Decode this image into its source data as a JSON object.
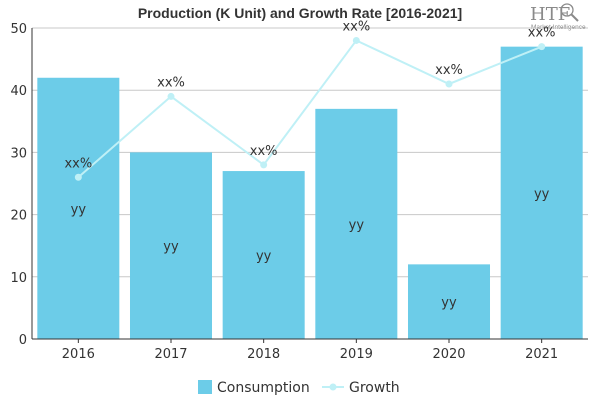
{
  "chart_data": {
    "type": "bar",
    "title": "Production (K Unit) and Growth Rate [2016-2021]",
    "categories": [
      "2016",
      "2017",
      "2018",
      "2019",
      "2020",
      "2021"
    ],
    "series": [
      {
        "name": "Consumption",
        "type": "bar",
        "values": [
          42,
          30,
          27,
          37,
          12,
          47
        ],
        "color": "#6ccce8",
        "data_labels": [
          "yy",
          "yy",
          "yy",
          "yy",
          "yy",
          "yy"
        ]
      },
      {
        "name": "Growth",
        "type": "line",
        "values": [
          26,
          39,
          28,
          48,
          41,
          47
        ],
        "color": "#bff0f6",
        "data_labels": [
          "xx%",
          "xx%",
          "xx%",
          "xx%",
          "xx%",
          "xx%"
        ]
      }
    ],
    "ylim": [
      0,
      50
    ],
    "yticks": [
      0,
      10,
      20,
      30,
      40,
      50
    ],
    "grid": true,
    "legend": "bottom-center"
  },
  "logo": {
    "main": "HTF",
    "sub": "Market Intelligence"
  }
}
